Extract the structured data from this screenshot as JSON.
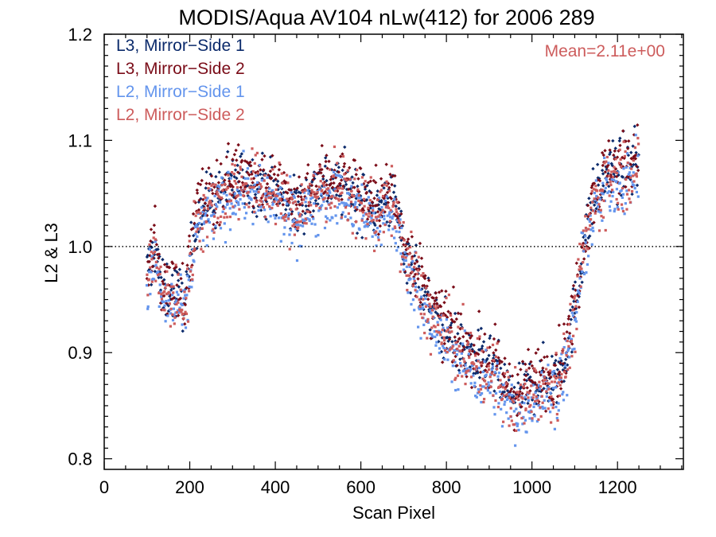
{
  "chart_data": {
    "type": "scatter",
    "title": "MODIS/Aqua AV104 nLw(412) for 2006 289",
    "xlabel": "Scan Pixel",
    "ylabel": "L2 & L3",
    "xlim": [
      0,
      1354
    ],
    "ylim": [
      0.79,
      1.2
    ],
    "xticks": [
      0,
      200,
      400,
      600,
      800,
      1000,
      1200
    ],
    "xtick_labels": [
      "0",
      "200",
      "400",
      "600",
      "800",
      "1000",
      "1200"
    ],
    "yticks": [
      0.8,
      0.9,
      1.0,
      1.1,
      1.2
    ],
    "ytick_labels": [
      "0.8",
      "0.9",
      "1.0",
      "1.1",
      "1.2"
    ],
    "reference_line": {
      "y": 1.0,
      "style": "dotted"
    },
    "annotation": {
      "text": "Mean=2.11e+00",
      "color": "#cd5c5c"
    },
    "legend_placement": "top-left",
    "x_range": [
      100,
      1250
    ],
    "series": [
      {
        "name": "L3, Mirror−Side 1",
        "color": "#0b2a6b",
        "marker": "diamond",
        "offset": 0.0,
        "noise": 0.014
      },
      {
        "name": "L3, Mirror−Side 2",
        "color": "#7a0c18",
        "marker": "diamond",
        "offset": 0.006,
        "noise": 0.015
      },
      {
        "name": "L2, Mirror−Side 1",
        "color": "#6495ed",
        "marker": "square",
        "offset": -0.014,
        "noise": 0.014
      },
      {
        "name": "L2, Mirror−Side 2",
        "color": "#cd5c5c",
        "marker": "square",
        "offset": -0.006,
        "noise": 0.016
      }
    ],
    "trend": {
      "x": [
        100,
        120,
        135,
        150,
        190,
        200,
        215,
        240,
        270,
        300,
        330,
        360,
        390,
        420,
        450,
        480,
        510,
        540,
        570,
        600,
        640,
        660,
        680,
        700,
        730,
        760,
        790,
        820,
        850,
        880,
        910,
        940,
        970,
        1000,
        1030,
        1060,
        1080,
        1100,
        1120,
        1140,
        1180,
        1220,
        1250
      ],
      "y": [
        0.975,
        1.0,
        0.955,
        0.96,
        0.95,
        0.98,
        1.03,
        1.04,
        1.05,
        1.06,
        1.065,
        1.06,
        1.055,
        1.045,
        1.035,
        1.05,
        1.06,
        1.06,
        1.055,
        1.045,
        1.035,
        1.045,
        1.04,
        1.0,
        0.975,
        0.94,
        0.925,
        0.91,
        0.9,
        0.89,
        0.885,
        0.865,
        0.855,
        0.87,
        0.875,
        0.88,
        0.9,
        0.94,
        1.0,
        1.04,
        1.07,
        1.075,
        1.08
      ]
    }
  }
}
